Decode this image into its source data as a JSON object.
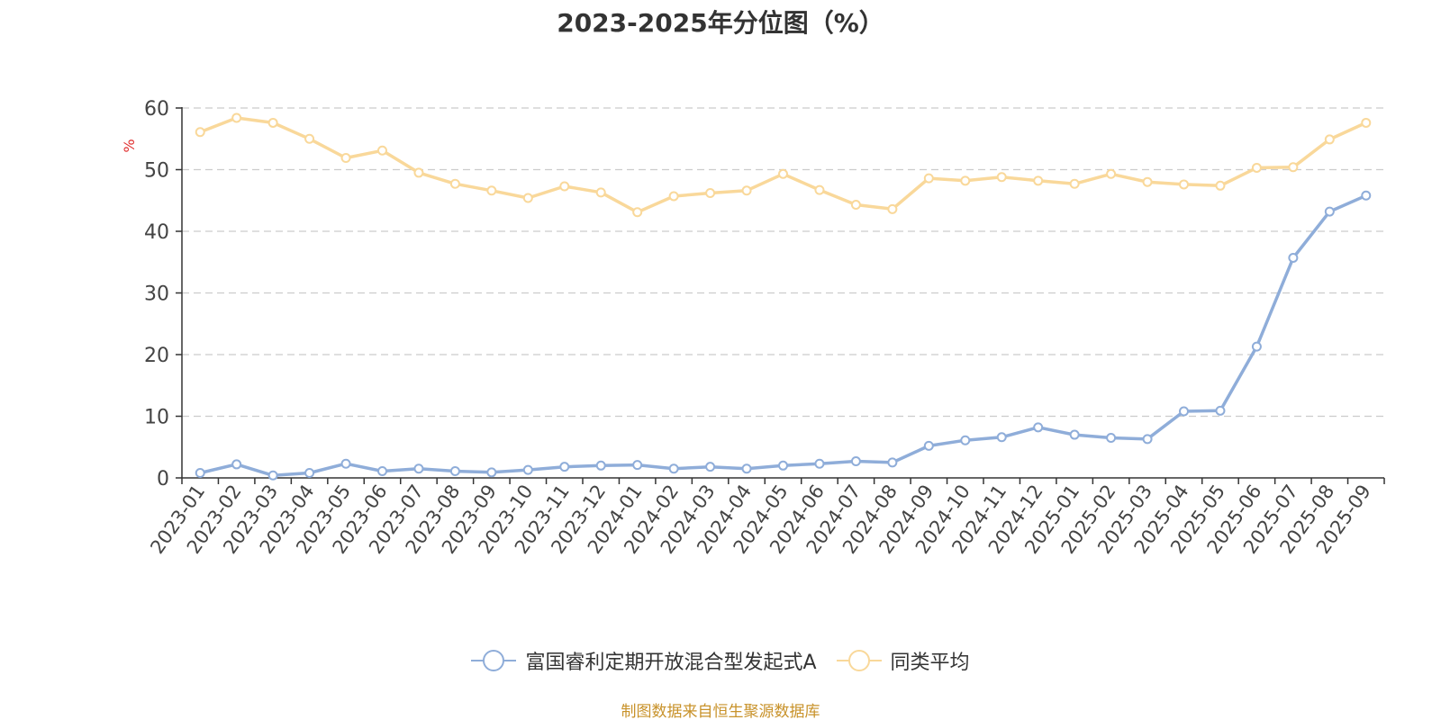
{
  "chart_data": {
    "type": "line",
    "title": "2023-2025年分位图（%）",
    "ylabel": "%",
    "xlabel": "",
    "ylim": [
      0,
      60
    ],
    "yticks": [
      0,
      10,
      20,
      30,
      40,
      50,
      60
    ],
    "grid": true,
    "legend_position": "bottom",
    "categories": [
      "2023-01",
      "2023-02",
      "2023-03",
      "2023-04",
      "2023-05",
      "2023-06",
      "2023-07",
      "2023-08",
      "2023-09",
      "2023-10",
      "2023-11",
      "2023-12",
      "2024-01",
      "2024-02",
      "2024-03",
      "2024-04",
      "2024-05",
      "2024-06",
      "2024-07",
      "2024-08",
      "2024-09",
      "2024-10",
      "2024-11",
      "2024-12",
      "2025-01",
      "2025-02",
      "2025-03",
      "2025-04",
      "2025-05",
      "2025-06",
      "2025-07",
      "2025-08",
      "2025-09"
    ],
    "series": [
      {
        "name": "富国睿利定期开放混合型发起式A",
        "color": "#8fadd9",
        "values": [
          0.8,
          2.2,
          0.4,
          0.8,
          2.3,
          1.1,
          1.5,
          1.1,
          0.9,
          1.3,
          1.8,
          2.0,
          2.1,
          1.5,
          1.8,
          1.5,
          2.0,
          2.3,
          2.7,
          2.5,
          5.2,
          6.1,
          6.6,
          8.2,
          7.0,
          6.5,
          6.3,
          10.8,
          10.9,
          21.3,
          35.7,
          43.2,
          45.8
        ]
      },
      {
        "name": "同类平均",
        "color": "#f9d89a",
        "values": [
          56.1,
          58.4,
          57.6,
          55.0,
          51.9,
          53.1,
          49.5,
          47.7,
          46.6,
          45.4,
          47.3,
          46.3,
          43.1,
          45.7,
          46.2,
          46.6,
          49.3,
          46.7,
          44.3,
          43.6,
          48.6,
          48.2,
          48.8,
          48.2,
          47.7,
          49.3,
          48.0,
          47.6,
          47.4,
          50.3,
          50.4,
          54.9,
          57.6
        ]
      }
    ]
  },
  "source_text": "制图数据来自恒生聚源数据库"
}
